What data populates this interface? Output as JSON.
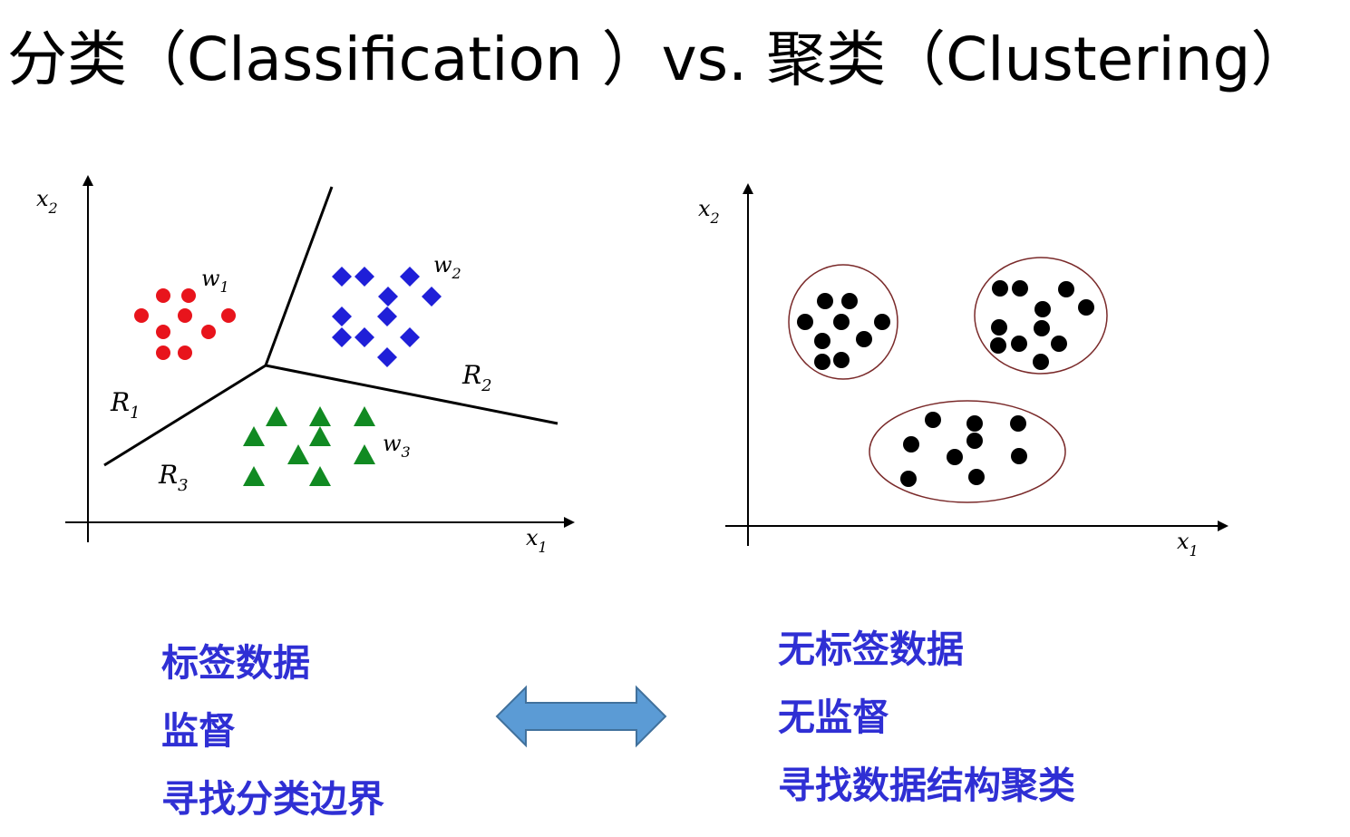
{
  "title": "分类（Classification ）vs. 聚类（Clustering）",
  "classification": {
    "axis_x": "x",
    "axis_x_sub": "1",
    "axis_y": "x",
    "axis_y_sub": "2",
    "regions": [
      {
        "label": "R",
        "sub": "1"
      },
      {
        "label": "R",
        "sub": "2"
      },
      {
        "label": "R",
        "sub": "3"
      }
    ],
    "classes": [
      {
        "label": "w",
        "sub": "1",
        "color": "#e8141c"
      },
      {
        "label": "w",
        "sub": "2",
        "color": "#1f1fd8"
      },
      {
        "label": "w",
        "sub": "3",
        "color": "#118a22"
      }
    ],
    "features": [
      "标签数据",
      "监督",
      "寻找分类边界"
    ]
  },
  "clustering": {
    "axis_x": "x",
    "axis_x_sub": "1",
    "axis_y": "x",
    "axis_y_sub": "2",
    "cluster_outline_color": "#7a2a2a",
    "features": [
      "无标签数据",
      "无监督",
      "寻找数据结构聚类"
    ]
  },
  "arrow_color": "#5b9bd5"
}
